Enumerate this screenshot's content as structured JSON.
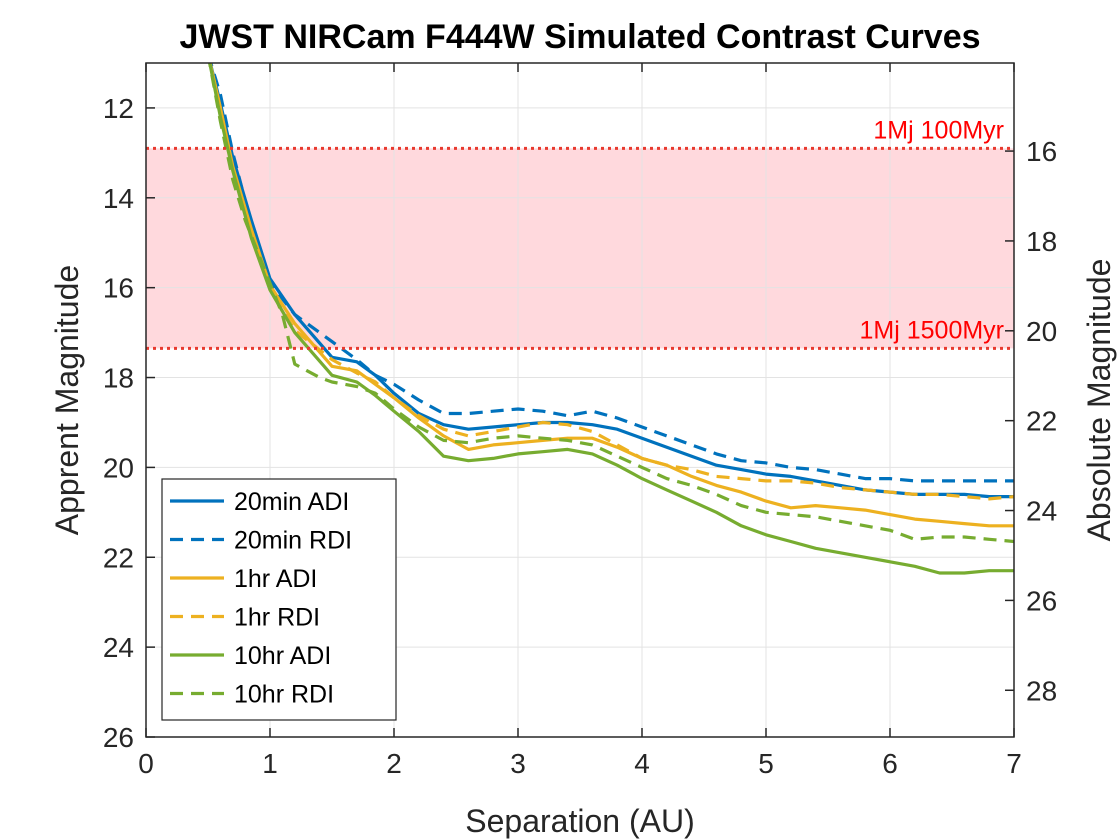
{
  "chart_data": {
    "type": "line",
    "title": "JWST NIRCam F444W Simulated Contrast Curves",
    "xlabel": "Separation (AU)",
    "ylabel": "Apprent Magnitude",
    "y2label": "Absolute Magnitude",
    "xlim": [
      0,
      7
    ],
    "ylim": [
      11,
      26
    ],
    "y_reversed": true,
    "y2lim": [
      14.04,
      29.04
    ],
    "x_ticks": [
      "0",
      "1",
      "2",
      "3",
      "4",
      "5",
      "6",
      "7"
    ],
    "y_ticks": [
      "12",
      "14",
      "16",
      "18",
      "20",
      "22",
      "24",
      "26"
    ],
    "y2_ticks": [
      "16",
      "18",
      "20",
      "22",
      "24",
      "26",
      "28"
    ],
    "grid": true,
    "legend_location": "bottom-left",
    "band": {
      "y_top": 12.9,
      "y_bottom": 17.35,
      "color": "#ffd9dd"
    },
    "reference_lines": [
      {
        "label": "1Mj 100Myr",
        "y": 12.9,
        "color": "#e83a2f"
      },
      {
        "label": "1Mj 1500Myr",
        "y": 17.35,
        "color": "#e83a2f"
      }
    ],
    "series": [
      {
        "name": "20min ADI",
        "color": "#0072bd",
        "dash": "solid",
        "x": [
          0.5,
          0.6,
          0.7,
          0.85,
          1.0,
          1.2,
          1.5,
          1.7,
          1.85,
          2.0,
          2.2,
          2.4,
          2.6,
          2.8,
          3.0,
          3.2,
          3.4,
          3.6,
          3.8,
          4.0,
          4.2,
          4.4,
          4.6,
          4.8,
          5.0,
          5.2,
          5.4,
          5.6,
          5.8,
          6.0,
          6.2,
          6.4,
          6.6,
          6.8,
          7.0
        ],
        "values": [
          10.8,
          11.9,
          13.1,
          14.5,
          15.8,
          16.6,
          17.55,
          17.65,
          17.95,
          18.35,
          18.8,
          19.05,
          19.15,
          19.1,
          19.05,
          19.0,
          19.0,
          19.05,
          19.15,
          19.35,
          19.55,
          19.75,
          19.95,
          20.05,
          20.15,
          20.2,
          20.3,
          20.4,
          20.5,
          20.55,
          20.6,
          20.6,
          20.6,
          20.65,
          20.65
        ]
      },
      {
        "name": "20min RDI",
        "color": "#0072bd",
        "dash": "dashed",
        "x": [
          0.5,
          0.6,
          0.7,
          0.85,
          1.0,
          1.2,
          1.5,
          1.7,
          1.85,
          2.0,
          2.2,
          2.4,
          2.6,
          2.8,
          3.0,
          3.2,
          3.4,
          3.6,
          3.8,
          4.0,
          4.2,
          4.4,
          4.6,
          4.8,
          5.0,
          5.2,
          5.4,
          5.6,
          5.8,
          6.0,
          6.2,
          6.4,
          6.6,
          6.8,
          7.0
        ],
        "values": [
          10.8,
          11.7,
          13.0,
          14.6,
          15.9,
          16.6,
          17.2,
          17.6,
          17.95,
          18.15,
          18.5,
          18.8,
          18.8,
          18.75,
          18.7,
          18.75,
          18.85,
          18.75,
          18.9,
          19.1,
          19.3,
          19.5,
          19.7,
          19.85,
          19.9,
          20.0,
          20.05,
          20.15,
          20.25,
          20.25,
          20.3,
          20.3,
          20.3,
          20.3,
          20.3
        ]
      },
      {
        "name": "1hr ADI",
        "color": "#edb120",
        "dash": "solid",
        "x": [
          0.5,
          0.6,
          0.7,
          0.85,
          1.0,
          1.2,
          1.5,
          1.7,
          1.85,
          2.0,
          2.2,
          2.4,
          2.6,
          2.8,
          3.0,
          3.2,
          3.4,
          3.6,
          3.8,
          4.0,
          4.2,
          4.4,
          4.6,
          4.8,
          5.0,
          5.2,
          5.4,
          5.6,
          5.8,
          6.0,
          6.2,
          6.4,
          6.6,
          6.8,
          7.0
        ],
        "values": [
          10.8,
          12.0,
          13.3,
          14.7,
          15.95,
          16.8,
          17.75,
          17.85,
          18.15,
          18.45,
          18.9,
          19.3,
          19.6,
          19.5,
          19.45,
          19.4,
          19.35,
          19.35,
          19.55,
          19.8,
          19.95,
          20.2,
          20.4,
          20.55,
          20.75,
          20.9,
          20.85,
          20.9,
          20.95,
          21.05,
          21.15,
          21.2,
          21.25,
          21.3,
          21.3
        ]
      },
      {
        "name": "1hr RDI",
        "color": "#edb120",
        "dash": "dashed",
        "x": [
          0.5,
          0.6,
          0.7,
          0.85,
          1.0,
          1.2,
          1.5,
          1.7,
          1.85,
          2.0,
          2.2,
          2.4,
          2.6,
          2.8,
          3.0,
          3.2,
          3.4,
          3.6,
          3.8,
          4.0,
          4.2,
          4.4,
          4.6,
          4.8,
          5.0,
          5.2,
          5.4,
          5.6,
          5.8,
          6.0,
          6.2,
          6.4,
          6.6,
          6.8,
          7.0
        ],
        "values": [
          10.8,
          12.0,
          13.4,
          14.8,
          16.0,
          16.95,
          17.6,
          17.9,
          18.1,
          18.45,
          18.85,
          19.15,
          19.3,
          19.2,
          19.1,
          19.0,
          19.05,
          19.2,
          19.5,
          19.8,
          19.95,
          20.05,
          20.2,
          20.25,
          20.3,
          20.3,
          20.35,
          20.45,
          20.5,
          20.55,
          20.6,
          20.6,
          20.65,
          20.7,
          20.65
        ]
      },
      {
        "name": "10hr ADI",
        "color": "#77ac30",
        "dash": "solid",
        "x": [
          0.5,
          0.6,
          0.7,
          0.85,
          1.0,
          1.2,
          1.5,
          1.7,
          1.85,
          2.0,
          2.2,
          2.4,
          2.6,
          2.8,
          3.0,
          3.2,
          3.4,
          3.6,
          3.8,
          4.0,
          4.2,
          4.4,
          4.6,
          4.8,
          5.0,
          5.2,
          5.4,
          5.6,
          5.8,
          6.0,
          6.2,
          6.4,
          6.6,
          6.8,
          7.0
        ],
        "values": [
          10.8,
          12.2,
          13.4,
          14.9,
          16.05,
          17.0,
          17.95,
          18.1,
          18.4,
          18.75,
          19.2,
          19.75,
          19.85,
          19.8,
          19.7,
          19.65,
          19.6,
          19.7,
          19.95,
          20.25,
          20.5,
          20.75,
          21.0,
          21.3,
          21.5,
          21.65,
          21.8,
          21.9,
          22.0,
          22.1,
          22.2,
          22.35,
          22.35,
          22.3,
          22.3
        ]
      },
      {
        "name": "10hr RDI",
        "color": "#77ac30",
        "dash": "dashed",
        "x": [
          0.5,
          0.6,
          0.7,
          0.8,
          0.9,
          1.0,
          1.1,
          1.2,
          1.4,
          1.5,
          1.7,
          1.85,
          2.0,
          2.2,
          2.4,
          2.6,
          2.8,
          3.0,
          3.2,
          3.4,
          3.6,
          3.8,
          4.0,
          4.2,
          4.4,
          4.6,
          4.8,
          5.0,
          5.2,
          5.4,
          5.6,
          5.8,
          6.0,
          6.2,
          6.4,
          6.6,
          6.8,
          7.0
        ],
        "values": [
          10.8,
          12.3,
          13.6,
          14.5,
          15.2,
          15.9,
          16.6,
          17.7,
          18.0,
          18.1,
          18.2,
          18.35,
          18.7,
          19.1,
          19.4,
          19.45,
          19.35,
          19.3,
          19.35,
          19.4,
          19.5,
          19.75,
          20.0,
          20.25,
          20.4,
          20.6,
          20.85,
          21.0,
          21.05,
          21.1,
          21.2,
          21.3,
          21.4,
          21.6,
          21.55,
          21.55,
          21.6,
          21.65
        ]
      }
    ]
  }
}
